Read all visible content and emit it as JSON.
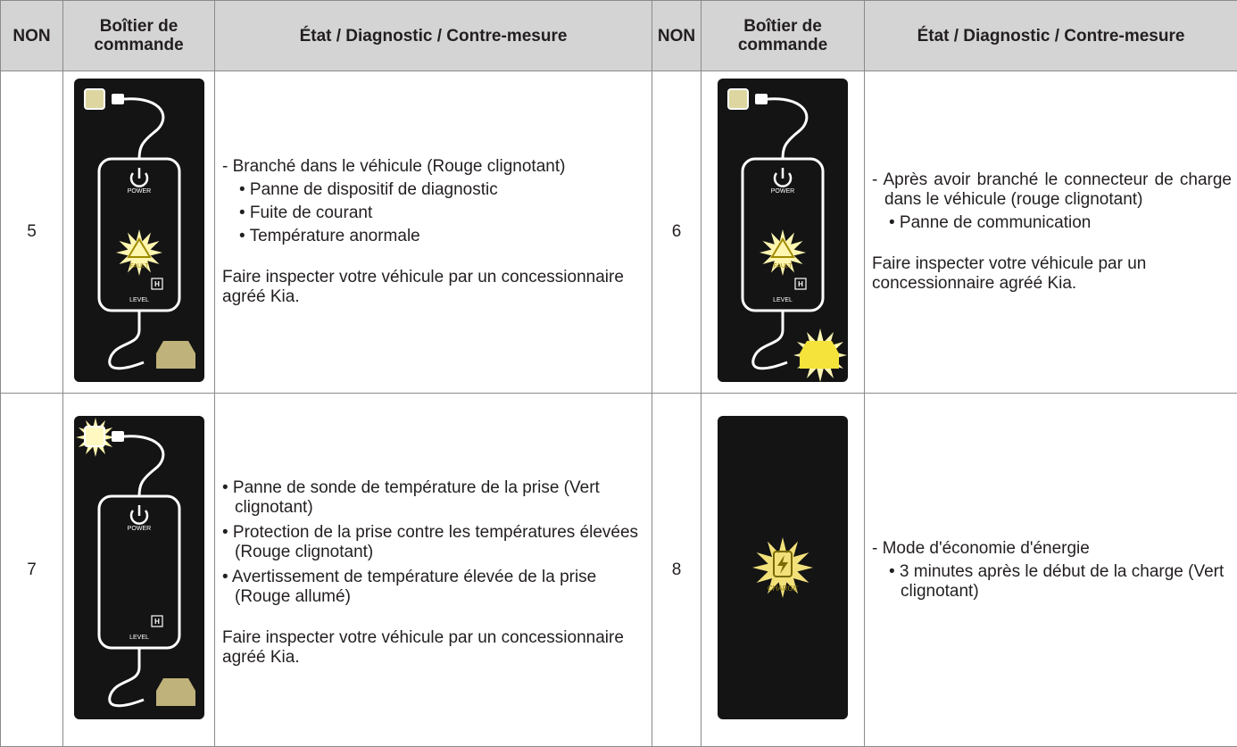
{
  "table": {
    "header": [
      "NON",
      "Boîtier de commande",
      "État / Diagnostic / Contre-mesure",
      "NON",
      "Boîtier de commande",
      "État / Diagnostic / Contre-mesure"
    ],
    "rows": [
      [
        {
          "no": "5",
          "panel": {
            "power": "POWER",
            "fault": "FAULT",
            "h": "H",
            "level": "LEVEL"
          },
          "intro": "- Branché dans le véhicule (Rouge clignotant)",
          "bullets": [
            "• Panne de dispositif de diagnostic",
            "• Fuite de courant",
            "• Température anormale"
          ],
          "note": "Faire inspecter votre véhicule par un concessionnaire agréé Kia."
        },
        {
          "no": "6",
          "panel": {
            "power": "POWER",
            "fault": "FAULT",
            "h": "H",
            "level": "LEVEL"
          },
          "intro": "- Après avoir branché le connecteur de charge dans le véhicule (rouge clignotant)",
          "bullets": [
            "• Panne de communication"
          ],
          "note": "Faire inspecter votre véhicule par un concessionnaire agréé Kia."
        }
      ],
      [
        {
          "no": "7",
          "panel": {
            "power": "POWER",
            "h": "H",
            "level": "LEVEL"
          },
          "bullets": [
            "• Panne de sonde de température de la prise (Vert clignotant)",
            "• Protection de la prise contre les températures élevées (Rouge clignotant)",
            "• Avertissement de température élevée de la prise (Rouge allumé)"
          ],
          "note": "Faire inspecter votre véhicule par un concessionnaire agréé Kia."
        },
        {
          "no": "8",
          "panel": {
            "charge": "CHARGE"
          },
          "intro": "- Mode d'économie d'énergie",
          "bullets": [
            "• 3 minutes après le début de la charge (Vert clignotant)"
          ]
        }
      ]
    ]
  }
}
